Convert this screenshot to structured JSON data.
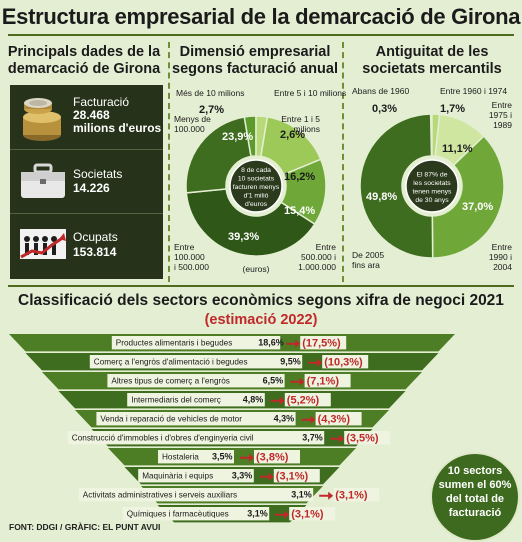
{
  "title": "Estructura empresarial de la demarcació de Girona",
  "section1": {
    "title_line1": "Principals dades de la",
    "title_line2": "demarcació de Girona",
    "stats": [
      {
        "label": "Facturació",
        "value_line1": "28.468",
        "value_line2": "milions d'euros",
        "icon": "coins-icon"
      },
      {
        "label": "Societats",
        "value_line1": "14.226",
        "value_line2": "",
        "icon": "briefcase-icon"
      },
      {
        "label": "Ocupats",
        "value_line1": "153.814",
        "value_line2": "",
        "icon": "workers-icon"
      }
    ]
  },
  "section2": {
    "title_line1": "Dimensió empresarial",
    "title_line2": "segons facturació anual",
    "center_note": [
      "8 de cada",
      "10 societats",
      "facturen menys",
      "d'1 milió",
      "d'euros"
    ],
    "unit_note": "(euros)"
  },
  "section3": {
    "title_line1": "Antiguitat de les",
    "title_line2": "societats mercantils",
    "center_note": [
      "El 87% de",
      "les societats",
      "tenen menys",
      "de 30 anys"
    ]
  },
  "sectors": {
    "title": "Classificació dels sectors econòmics segons xifra de negoci 2021",
    "subtitle": "(estimació 2022)"
  },
  "badge": [
    "10 sectors",
    "sumen el 60%",
    "del total de",
    "facturació"
  ],
  "footer": "FONT: DDGI / GRÀFIC: EL PUNT AVUI",
  "colors": {
    "dark_green": "#26331a",
    "mid_green": "#4a7a22",
    "light_green": "#9cc957",
    "red": "#c0282a",
    "background": "#e4eed3"
  },
  "chart_data": [
    {
      "type": "pie",
      "title": "Dimensió empresarial segons facturació anual",
      "unit": "(euros)",
      "labels": [
        "Més de 10 milions",
        "Entre 5 i 10 milions",
        "Entre 1 i 5 milions",
        "Entre 500.000 i 1.000.000",
        "Entre 100.000 i 500.000",
        "Menys de 100.000"
      ],
      "values": [
        2.7,
        2.6,
        16.2,
        15.4,
        39.3,
        23.9
      ],
      "value_labels": [
        "2,7%",
        "2,6%",
        "16,2%",
        "15,4%",
        "39,3%",
        "23,9%"
      ]
    },
    {
      "type": "pie",
      "title": "Antiguitat de les societats mercantils",
      "labels": [
        "Abans de 1960",
        "Entre 1960 i 1974",
        "Entre 1975 i 1989",
        "Entre 1990 i 2004",
        "De 2005 fins ara"
      ],
      "values": [
        0.3,
        1.7,
        11.1,
        37.0,
        49.8
      ],
      "value_labels": [
        "0,3%",
        "1,7%",
        "11,1%",
        "37,0%",
        "49,8%"
      ]
    },
    {
      "type": "bar",
      "title": "Classificació dels sectors econòmics segons xifra de negoci 2021",
      "subtitle": "(estimació 2022)",
      "categories": [
        "Productes alimentaris i begudes",
        "Comerç a l'engròs d'alimentació i begudes",
        "Altres tipus de comerç a l'engròs",
        "Intermediaris del comerç",
        "Venda i reparació de vehicles de motor",
        "Construcció d'immobles i d'obres d'enginyeria civil",
        "Hostaleria",
        "Maquinària i equips",
        "Activitats administratives i serveis auxiliars",
        "Químiques i farmacèutiques"
      ],
      "series": [
        {
          "name": "2021",
          "values": [
            18.6,
            9.5,
            6.5,
            4.8,
            4.3,
            3.7,
            3.5,
            3.3,
            3.1,
            3.1
          ],
          "labels": [
            "18,6%",
            "9,5%",
            "6,5%",
            "4,8%",
            "4,3%",
            "3,7%",
            "3,5%",
            "3,3%",
            "3,1%",
            "3,1%"
          ]
        },
        {
          "name": "(estimació 2022)",
          "values": [
            17.5,
            10.3,
            7.1,
            5.2,
            4.3,
            3.5,
            3.8,
            3.1,
            3.1,
            3.1
          ],
          "labels": [
            "(17,5%)",
            "(10,3%)",
            "(7,1%)",
            "(5,2%)",
            "(4,3%)",
            "(3,5%)",
            "(3,8%)",
            "(3,1%)",
            "(3,1%)",
            "(3,1%)"
          ]
        }
      ]
    }
  ]
}
